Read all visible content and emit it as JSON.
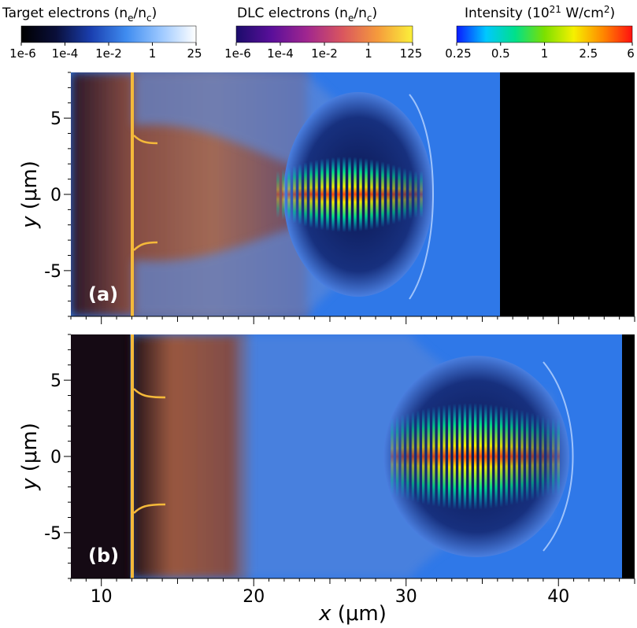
{
  "colorbars": [
    {
      "title": "Target electrons (n",
      "title_sub": "e",
      "title_mid": "/n",
      "title_sub2": "c",
      "title_end": ")",
      "ticks": [
        "1e-6",
        "1e-4",
        "1e-2",
        "1",
        "25"
      ],
      "colors": [
        "#000000",
        "#0a0f3a",
        "#1a3fb0",
        "#3f8cf0",
        "#9cc8ff",
        "#ffffff"
      ]
    },
    {
      "title": "DLC electrons (n",
      "title_sub": "e",
      "title_mid": "/n",
      "title_sub2": "c",
      "title_end": ")",
      "ticks": [
        "1e-6",
        "1e-4",
        "1e-2",
        "1",
        "125"
      ],
      "colors": [
        "#1b0c6b",
        "#5a0f9a",
        "#a0268f",
        "#d9555f",
        "#f59a3c",
        "#fbf03a"
      ]
    },
    {
      "title": "Intensity (10",
      "title_sup": "21",
      "title_end": " W/cm",
      "title_sup2": "2",
      "title_close": ")",
      "ticks": [
        "0.25",
        "0.5",
        "1",
        "2.5",
        "6"
      ],
      "colors": [
        "#0a1aff",
        "#00c8ff",
        "#00e08a",
        "#7ce000",
        "#f6f000",
        "#ff8800",
        "#ff1010"
      ]
    }
  ],
  "chart_data": [
    {
      "type": "heatmap",
      "panel_label": "(a)",
      "xlabel": "x (μm)",
      "ylabel": "y (μm)",
      "xlim": [
        8,
        45
      ],
      "ylim": [
        -8,
        8
      ],
      "yticks": [
        5,
        0,
        -5
      ],
      "features": {
        "dlc_foil_x": 12,
        "target_boundary_x": 36,
        "laser_pulse_x_range": [
          21.5,
          31.5
        ]
      }
    },
    {
      "type": "heatmap",
      "panel_label": "(b)",
      "xlabel": "x (μm)",
      "ylabel": "y (μm)",
      "xlim": [
        8,
        45
      ],
      "ylim": [
        -8,
        8
      ],
      "xticks": [
        10,
        20,
        30,
        40
      ],
      "yticks": [
        5,
        0,
        -5
      ],
      "features": {
        "dlc_foil_x": 12,
        "target_boundary_x": 44.2,
        "laser_pulse_x_range": [
          29,
          40.5
        ]
      }
    }
  ]
}
